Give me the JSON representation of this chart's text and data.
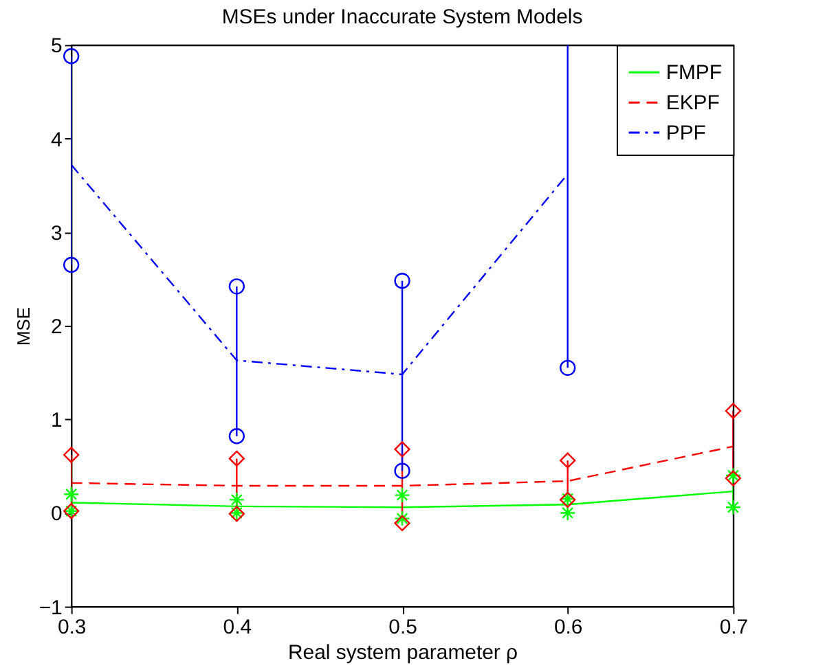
{
  "chart_data": {
    "type": "line",
    "title": "MSEs under Inaccurate System Models",
    "xlabel": "Real system parameter ρ",
    "ylabel": "MSE",
    "x": [
      0.3,
      0.4,
      0.5,
      0.6,
      0.7
    ],
    "series": [
      {
        "name": "FMPF",
        "color": "#00ff00",
        "line_style": "solid",
        "values": [
          0.11,
          0.07,
          0.06,
          0.09,
          0.23
        ],
        "errors": [
          [
            0.02,
            0.2
          ],
          [
            0.0,
            0.14
          ],
          [
            -0.06,
            0.19
          ],
          [
            0.0,
            0.15
          ],
          [
            0.06,
            0.4
          ]
        ]
      },
      {
        "name": "EKPF",
        "color": "#ff0000",
        "line_style": "dashed",
        "values": [
          0.32,
          0.29,
          0.29,
          0.34,
          0.71
        ],
        "errors": [
          [
            0.02,
            0.62
          ],
          [
            -0.01,
            0.58
          ],
          [
            -0.11,
            0.68
          ],
          [
            0.14,
            0.56
          ],
          [
            0.37,
            1.09
          ]
        ]
      },
      {
        "name": "PPF",
        "color": "#0000ff",
        "line_style": "dashdot",
        "values": [
          3.72,
          1.63,
          1.48,
          3.62,
          null
        ],
        "errors": [
          [
            2.65,
            4.88
          ],
          [
            0.82,
            2.42
          ],
          [
            0.45,
            2.48
          ],
          [
            1.55,
            5.0
          ],
          null
        ]
      },
      {
        "type": "scatter",
        "color": "#00ff00",
        "marker": "cross",
        "x": [
          0.3,
          0.3,
          0.4,
          0.4,
          0.5,
          0.5,
          0.6,
          0.6,
          0.7,
          0.7
        ],
        "values": [
          0.02,
          0.2,
          0.0,
          0.14,
          -0.06,
          0.19,
          0.0,
          0.15,
          0.06,
          0.4
        ]
      },
      {
        "type": "scatter",
        "color": "#ff0000",
        "marker": "diamond",
        "x": [
          0.3,
          0.3,
          0.4,
          0.4,
          0.5,
          0.5,
          0.6,
          0.6,
          0.7,
          0.7
        ],
        "values": [
          0.02,
          0.62,
          -0.01,
          0.58,
          -0.11,
          0.68,
          0.14,
          0.56,
          0.37,
          1.09
        ]
      },
      {
        "type": "scatter",
        "color": "#0000ff",
        "marker": "circle",
        "x": [
          0.3,
          0.3,
          0.4,
          0.4,
          0.5,
          0.5,
          0.6
        ],
        "values": [
          2.65,
          4.88,
          0.82,
          2.42,
          0.45,
          2.48,
          1.55
        ]
      }
    ],
    "xlim": [
      0.3,
      0.7
    ],
    "xticks": [
      0.3,
      0.4,
      0.5,
      0.6,
      0.7
    ],
    "ylim": [
      -1,
      5
    ],
    "yticks": [
      -1,
      0,
      1,
      2,
      3,
      4,
      5
    ],
    "grid": false,
    "legend": "top right"
  }
}
